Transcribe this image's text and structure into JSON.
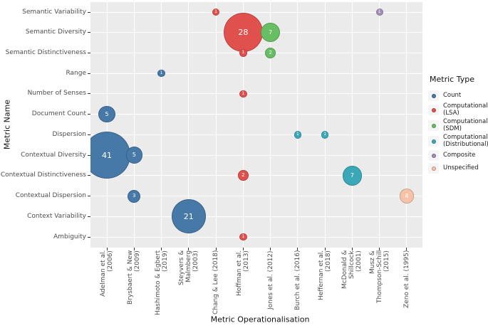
{
  "chart_data": {
    "type": "bubble",
    "title": "",
    "xlabel": "Metric Operationalisation",
    "ylabel": "Metric Name",
    "grid": true,
    "panel_bg": "#EBEBEB",
    "grid_color": "#FFFFFF",
    "x_categories": [
      "Adelman et al. (2006)",
      "Brysbaert & New (2009)",
      "Hashimoto & Egbert (2019)",
      "Steyvers & Malmberg (2003)",
      "Chang & Lee (2018)",
      "Hoffman et al. (2013)",
      "Jones et al. (2012)",
      "Burch et al. (2016)",
      "Heffernan et al. (2018)",
      "McDonald & Shillcock (2001)",
      "Musz & Thompson-Schill (2015)",
      "Zeno et al. (1995)"
    ],
    "x_tick_labels": [
      "Adelman et al.\n(2006)",
      "Brysbaert & New\n(2009)",
      "Hashimoto & Egbert\n(2019)",
      "Steyvers & Malmberg\n(2003)",
      "Chang & Lee (2018)",
      "Hoffman et al.\n(2013)",
      "Jones et al. (2012)",
      "Burch et al. (2016)",
      "Heffernan et al.\n(2018)",
      "McDonald & Shillcock\n(2001)",
      "Musz &\nThompson-Schill\n(2015)",
      "Zeno et al. (1995)"
    ],
    "y_categories": [
      "Semantic Variability",
      "Semantic Diversity",
      "Semantic Distinctiveness",
      "Range",
      "Number of Senses",
      "Document Count",
      "Dispersion",
      "Contextual Diversity",
      "Contextual Distinctiveness",
      "Contextual Dispersion",
      "Context Variability",
      "Ambiguity"
    ],
    "legend": {
      "title": "Metric Type",
      "position": "right",
      "entries": [
        {
          "label": "Count",
          "color": "#4678A8"
        },
        {
          "label": "Computational\n(LSA)",
          "color": "#E0514E"
        },
        {
          "label": "Computational\n(SDM)",
          "color": "#68BE62"
        },
        {
          "label": "Computational\n(Distributional)",
          "color": "#3BA8B8"
        },
        {
          "label": "Composite",
          "color": "#A18FB5"
        },
        {
          "label": "Unspecified",
          "color": "#F6C3A9"
        }
      ]
    },
    "type_colors": {
      "Count": "#4678A8",
      "Computational (LSA)": "#E0514E",
      "Computational (SDM)": "#68BE62",
      "Computational (Distributional)": "#3BA8B8",
      "Composite": "#A18FB5",
      "Unspecified": "#F6C3A9"
    },
    "points": [
      {
        "x": "Chang & Lee (2018)",
        "y": "Semantic Variability",
        "n": 1,
        "type": "Computational (LSA)"
      },
      {
        "x": "Musz & Thompson-Schill (2015)",
        "y": "Semantic Variability",
        "n": 1,
        "type": "Composite"
      },
      {
        "x": "Hoffman et al. (2013)",
        "y": "Semantic Diversity",
        "n": 28,
        "type": "Computational (LSA)"
      },
      {
        "x": "Jones et al. (2012)",
        "y": "Semantic Diversity",
        "n": 7,
        "type": "Computational (SDM)"
      },
      {
        "x": "Hoffman et al. (2013)",
        "y": "Semantic Distinctiveness",
        "n": 1,
        "type": "Computational (LSA)"
      },
      {
        "x": "Jones et al. (2012)",
        "y": "Semantic Distinctiveness",
        "n": 2,
        "type": "Computational (SDM)"
      },
      {
        "x": "Hashimoto & Egbert (2019)",
        "y": "Range",
        "n": 1,
        "type": "Count"
      },
      {
        "x": "Hoffman et al. (2013)",
        "y": "Number of Senses",
        "n": 1,
        "type": "Computational (LSA)"
      },
      {
        "x": "Adelman et al. (2006)",
        "y": "Document Count",
        "n": 5,
        "type": "Count"
      },
      {
        "x": "Burch et al. (2016)",
        "y": "Dispersion",
        "n": 1,
        "type": "Computational (Distributional)"
      },
      {
        "x": "Heffernan et al. (2018)",
        "y": "Dispersion",
        "n": 1,
        "type": "Computational (Distributional)"
      },
      {
        "x": "Adelman et al. (2006)",
        "y": "Contextual Diversity",
        "n": 41,
        "type": "Count"
      },
      {
        "x": "Brysbaert & New (2009)",
        "y": "Contextual Diversity",
        "n": 5,
        "type": "Count"
      },
      {
        "x": "Hoffman et al. (2013)",
        "y": "Contextual Distinctiveness",
        "n": 2,
        "type": "Computational (LSA)"
      },
      {
        "x": "McDonald & Shillcock (2001)",
        "y": "Contextual Distinctiveness",
        "n": 7,
        "type": "Computational (Distributional)"
      },
      {
        "x": "Brysbaert & New (2009)",
        "y": "Contextual Dispersion",
        "n": 3,
        "type": "Count"
      },
      {
        "x": "Zeno et al. (1995)",
        "y": "Contextual Dispersion",
        "n": 4,
        "type": "Unspecified"
      },
      {
        "x": "Steyvers & Malmberg (2003)",
        "y": "Context Variability",
        "n": 21,
        "type": "Count"
      },
      {
        "x": "Hoffman et al. (2013)",
        "y": "Ambiguity",
        "n": 1,
        "type": "Computational (LSA)"
      }
    ]
  }
}
